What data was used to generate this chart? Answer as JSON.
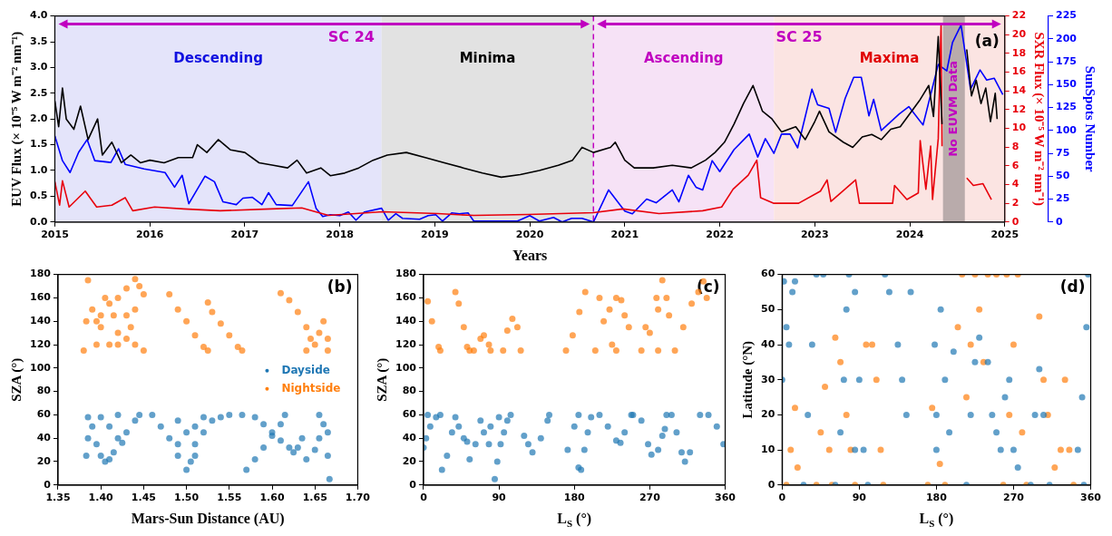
{
  "chart_data": [
    {
      "type": "line",
      "xlabel": "Years",
      "ylabel": "EUV Flux (× 10⁻⁵ W m⁻² nm⁻¹)",
      "y2label": "SXR Flux (× 10⁻⁵ W m⁻² nm⁻¹)",
      "y3label": "SunSpots Number",
      "xlim": [
        2015,
        2025
      ],
      "xticks": [
        2015,
        2016,
        2017,
        2018,
        2019,
        2020,
        2021,
        2022,
        2023,
        2024,
        2025
      ],
      "ylim": [
        0,
        4
      ],
      "yticks": [
        {
          "value": 0,
          "label": "0.0"
        },
        0.5,
        {
          "value": 1,
          "label": "1.0"
        },
        1.5,
        {
          "value": 2,
          "label": "2.0"
        },
        2.5,
        {
          "value": 3,
          "label": "3.0"
        },
        3.5,
        {
          "value": 4,
          "label": "4.0"
        }
      ],
      "y2lim": [
        0,
        22
      ],
      "y2ticks": [
        0,
        2,
        4,
        6,
        8,
        10,
        12,
        14,
        16,
        18,
        20,
        22
      ],
      "y3lim": [
        0,
        225
      ],
      "y3ticks": [
        0,
        25,
        50,
        75,
        100,
        125,
        150,
        175,
        200,
        225
      ],
      "marker": "none",
      "line_style": "solid",
      "series": [
        {
          "color": "#000000",
          "x": [
            2015.0,
            2015.04,
            2015.08,
            2015.12,
            2015.2,
            2015.27,
            2015.35,
            2015.45,
            2015.5,
            2015.6,
            2015.7,
            2015.8,
            2015.9,
            2016.0,
            2016.15,
            2016.3,
            2016.45,
            2016.5,
            2016.6,
            2016.72,
            2016.85,
            2017.0,
            2017.15,
            2017.3,
            2017.45,
            2017.55,
            2017.65,
            2017.8,
            2017.9,
            2018.05,
            2018.2,
            2018.35,
            2018.5,
            2018.7,
            2018.9,
            2019.1,
            2019.3,
            2019.5,
            2019.7,
            2019.9,
            2020.1,
            2020.3,
            2020.45,
            2020.55,
            2020.67,
            2020.85,
            2020.9,
            2021.0,
            2021.1,
            2021.3,
            2021.5,
            2021.7,
            2021.85,
            2021.95,
            2022.05,
            2022.15,
            2022.25,
            2022.35,
            2022.45,
            2022.55,
            2022.65,
            2022.8,
            2022.9,
            2023.0,
            2023.05,
            2023.15,
            2023.3,
            2023.4,
            2023.5,
            2023.6,
            2023.7,
            2023.8,
            2023.9,
            2024.0,
            2024.1,
            2024.2,
            2024.25,
            2024.3,
            2024.34,
            2024.36,
            2024.6,
            2024.65,
            2024.7,
            2024.75,
            2024.8,
            2024.85,
            2024.9,
            2024.92
          ],
          "values": [
            2.35,
            1.85,
            2.6,
            2.0,
            1.8,
            2.25,
            1.6,
            2.0,
            1.3,
            1.55,
            1.15,
            1.3,
            1.15,
            1.2,
            1.15,
            1.25,
            1.25,
            1.5,
            1.35,
            1.6,
            1.4,
            1.35,
            1.15,
            1.1,
            1.05,
            1.2,
            0.95,
            1.05,
            0.9,
            0.95,
            1.05,
            1.2,
            1.3,
            1.35,
            1.25,
            1.15,
            1.05,
            0.95,
            0.87,
            0.92,
            1.0,
            1.1,
            1.2,
            1.45,
            1.35,
            1.45,
            1.55,
            1.2,
            1.05,
            1.05,
            1.1,
            1.05,
            1.2,
            1.35,
            1.55,
            1.9,
            2.3,
            2.65,
            2.15,
            2.0,
            1.75,
            1.85,
            1.6,
            1.95,
            2.15,
            1.75,
            1.55,
            1.45,
            1.65,
            1.7,
            1.6,
            1.8,
            1.85,
            2.1,
            2.35,
            2.65,
            2.05,
            3.6,
            1.9,
            null,
            3.35,
            2.45,
            2.75,
            2.3,
            2.6,
            1.95,
            2.5,
            2.0
          ]
        },
        {
          "color": "#e8000b",
          "axis": "y2",
          "x": [
            2015.0,
            2015.05,
            2015.08,
            2015.15,
            2015.32,
            2015.44,
            2015.6,
            2015.74,
            2015.82,
            2016.05,
            2016.36,
            2016.74,
            2017.27,
            2017.6,
            2017.88,
            2018.45,
            2019.03,
            2019.41,
            2019.98,
            2020.67,
            2020.98,
            2021.36,
            2021.82,
            2022.02,
            2022.14,
            2022.3,
            2022.39,
            2022.43,
            2022.57,
            2022.83,
            2023.06,
            2023.13,
            2023.17,
            2023.43,
            2023.47,
            2023.82,
            2023.84,
            2023.97,
            2024.09,
            2024.11,
            2024.17,
            2024.22,
            2024.24,
            2024.3,
            2024.33,
            2024.34,
            2024.36,
            2024.6,
            2024.67,
            2024.77,
            2024.86
          ],
          "values": [
            4.3,
            1.8,
            4.4,
            1.6,
            3.3,
            1.6,
            1.8,
            2.6,
            1.2,
            1.6,
            1.4,
            1.2,
            1.4,
            1.5,
            0.7,
            1.1,
            0.9,
            0.7,
            0.8,
            1.0,
            1.4,
            0.9,
            1.2,
            1.6,
            3.5,
            5.0,
            6.6,
            2.6,
            2.0,
            2.0,
            3.3,
            4.5,
            2.2,
            4.5,
            2.0,
            2.0,
            3.9,
            2.4,
            3.1,
            8.7,
            3.5,
            8.1,
            2.4,
            8.9,
            21.1,
            8.1,
            null,
            4.7,
            3.9,
            4.1,
            2.4
          ]
        },
        {
          "color": "#0000ff",
          "axis": "y3",
          "x": [
            2015.0,
            2015.08,
            2015.16,
            2015.25,
            2015.34,
            2015.42,
            2015.59,
            2015.67,
            2015.74,
            2015.94,
            2016.16,
            2016.26,
            2016.34,
            2016.41,
            2016.58,
            2016.68,
            2016.77,
            2016.91,
            2016.98,
            2017.08,
            2017.18,
            2017.25,
            2017.33,
            2017.5,
            2017.67,
            2017.75,
            2017.82,
            2017.9,
            2018.0,
            2018.09,
            2018.17,
            2018.26,
            2018.44,
            2018.51,
            2018.59,
            2018.66,
            2018.84,
            2018.93,
            2019.01,
            2019.08,
            2019.18,
            2019.26,
            2019.35,
            2019.41,
            2019.87,
            2020.0,
            2020.1,
            2020.25,
            2020.34,
            2020.44,
            2020.55,
            2020.67,
            2020.83,
            2021.0,
            2021.08,
            2021.23,
            2021.33,
            2021.5,
            2021.57,
            2021.67,
            2021.75,
            2021.82,
            2021.92,
            2022.0,
            2022.15,
            2022.31,
            2022.4,
            2022.48,
            2022.57,
            2022.65,
            2022.74,
            2022.82,
            2022.97,
            2023.03,
            2023.15,
            2023.22,
            2023.32,
            2023.41,
            2023.49,
            2023.57,
            2023.62,
            2023.7,
            2023.89,
            2023.99,
            2024.14,
            2024.3,
            2024.39,
            2024.45,
            2024.54,
            2024.64,
            2024.74,
            2024.81,
            2024.89,
            2024.98
          ],
          "values": [
            94,
            67,
            54,
            76,
            90,
            67,
            65,
            80,
            63,
            58,
            54,
            38,
            51,
            20,
            50,
            44,
            22,
            19,
            26,
            27,
            19,
            32,
            19,
            18,
            44,
            15,
            6,
            8,
            7,
            11,
            2,
            11,
            15,
            2,
            9,
            4,
            3,
            7,
            8,
            1,
            10,
            9,
            10,
            1,
            1,
            7,
            1,
            5,
            0,
            4,
            4,
            0,
            35,
            12,
            9,
            25,
            21,
            35,
            22,
            51,
            38,
            35,
            67,
            55,
            79,
            96,
            71,
            91,
            75,
            96,
            96,
            81,
            145,
            128,
            124,
            98,
            135,
            158,
            158,
            116,
            134,
            100,
            118,
            126,
            106,
            172,
            165,
            196,
            215,
            145,
            166,
            155,
            157,
            139
          ]
        }
      ],
      "bands": [
        {
          "axis": "x",
          "from": 2015,
          "to": 2018.44,
          "label": "Descending",
          "color": "#e4e4fa"
        },
        {
          "axis": "x",
          "from": 2018.44,
          "to": 2020.67,
          "label": "Minima",
          "color": "#e2e2e2"
        },
        {
          "axis": "x",
          "from": 2020.67,
          "to": 2022.57,
          "label": "Ascending",
          "color": "#f6e2f6"
        },
        {
          "axis": "x",
          "from": 2022.57,
          "to": 2025,
          "label": "Maxima",
          "color": "#fbe4e2"
        },
        {
          "axis": "x",
          "from": 2024.35,
          "to": 2024.58,
          "label": "No EUVM Data",
          "color": "#b9abab"
        }
      ],
      "ref_lines": [
        {
          "axis": "x",
          "value": 2020.67,
          "color": "#c000c0",
          "line_style": "dashed"
        }
      ],
      "annotations": [
        "SC 24",
        "SC 25",
        "(a)"
      ]
    },
    {
      "type": "scatter",
      "xlabel": "Mars-Sun Distance (AU)",
      "ylabel": "SZA (°)",
      "xlim": [
        1.35,
        1.7
      ],
      "xticks": [
        1.35,
        {
          "value": 1.4,
          "label": "1.40"
        },
        1.45,
        {
          "value": 1.5,
          "label": "1.50"
        },
        1.55,
        {
          "value": 1.6,
          "label": "1.60"
        },
        1.65,
        {
          "value": 1.7,
          "label": "1.70"
        }
      ],
      "ylim": [
        0,
        180
      ],
      "yticks": [
        0,
        20,
        40,
        60,
        80,
        100,
        120,
        140,
        160,
        180
      ],
      "marker": "circle",
      "legend": "right",
      "series": [
        {
          "name": "Dayside",
          "color": "#1f77b4",
          "x": [
            1.383,
            1.385,
            1.385,
            1.39,
            1.395,
            1.4,
            1.405,
            1.41,
            1.415,
            1.4,
            1.41,
            1.42,
            1.425,
            1.43,
            1.44,
            1.445,
            1.42,
            1.46,
            1.47,
            1.48,
            1.49,
            1.5,
            1.505,
            1.51,
            1.52,
            1.53,
            1.54,
            1.55,
            1.565,
            1.49,
            1.5,
            1.51,
            1.52,
            1.49,
            1.51,
            1.57,
            1.58,
            1.59,
            1.6,
            1.61,
            1.615,
            1.58,
            1.59,
            1.6,
            1.61,
            1.62,
            1.625,
            1.63,
            1.635,
            1.64,
            1.65,
            1.655,
            1.66,
            1.655,
            1.665,
            1.665,
            1.667
          ],
          "values": [
            25,
            40,
            58,
            50,
            35,
            25,
            20,
            22,
            28,
            58,
            50,
            40,
            36,
            45,
            55,
            60,
            60,
            60,
            50,
            40,
            25,
            13,
            20,
            35,
            45,
            55,
            58,
            60,
            60,
            55,
            45,
            50,
            58,
            35,
            25,
            13,
            22,
            32,
            42,
            52,
            60,
            58,
            52,
            45,
            38,
            32,
            28,
            32,
            40,
            22,
            30,
            40,
            52,
            60,
            45,
            25,
            5
          ]
        },
        {
          "name": "Nightside",
          "color": "#ff7f0e",
          "x": [
            1.38,
            1.383,
            1.385,
            1.39,
            1.395,
            1.4,
            1.405,
            1.41,
            1.415,
            1.42,
            1.4,
            1.395,
            1.42,
            1.43,
            1.44,
            1.445,
            1.45,
            1.44,
            1.44,
            1.45,
            1.43,
            1.41,
            1.42,
            1.435,
            1.43,
            1.48,
            1.49,
            1.5,
            1.51,
            1.52,
            1.525,
            1.525,
            1.53,
            1.54,
            1.55,
            1.56,
            1.565,
            1.61,
            1.62,
            1.63,
            1.64,
            1.645,
            1.65,
            1.655,
            1.66,
            1.665,
            1.665,
            1.64
          ],
          "values": [
            115,
            140,
            175,
            150,
            120,
            145,
            160,
            155,
            145,
            130,
            135,
            140,
            160,
            168,
            176,
            170,
            163,
            150,
            120,
            115,
            125,
            120,
            120,
            135,
            145,
            163,
            150,
            140,
            128,
            118,
            115,
            156,
            148,
            138,
            128,
            118,
            115,
            164,
            158,
            148,
            135,
            125,
            120,
            130,
            140,
            125,
            115,
            115
          ]
        }
      ],
      "annotations": [
        "(b)"
      ]
    },
    {
      "type": "scatter",
      "xlabel": "L$_{S}$ (°)",
      "ylabel": "SZA (°)",
      "xlim": [
        0,
        360
      ],
      "xticks": [
        0,
        90,
        180,
        270,
        360
      ],
      "ylim": [
        0,
        180
      ],
      "yticks": [
        0,
        20,
        40,
        60,
        80,
        100,
        120,
        140,
        160,
        180
      ],
      "marker": "circle",
      "series": [
        {
          "color": "#1f77b4",
          "x": [
            0,
            3,
            8,
            15,
            20,
            5,
            22,
            28,
            34,
            38,
            42,
            48,
            52,
            55,
            62,
            68,
            72,
            78,
            85,
            88,
            92,
            96,
            100,
            104,
            90,
            80,
            120,
            125,
            130,
            140,
            148,
            150,
            172,
            180,
            185,
            188,
            192,
            196,
            200,
            185,
            210,
            220,
            230,
            235,
            240,
            248,
            250,
            260,
            268,
            272,
            280,
            285,
            288,
            290,
            296,
            302,
            308,
            312,
            318,
            330,
            340,
            350,
            358
          ],
          "values": [
            32,
            40,
            50,
            58,
            60,
            60,
            13,
            25,
            45,
            58,
            50,
            40,
            37,
            22,
            35,
            55,
            45,
            35,
            5,
            20,
            35,
            45,
            55,
            60,
            58,
            50,
            42,
            35,
            28,
            40,
            55,
            60,
            30,
            50,
            15,
            13,
            30,
            45,
            58,
            60,
            60,
            50,
            38,
            36,
            45,
            60,
            60,
            55,
            35,
            26,
            30,
            42,
            48,
            60,
            60,
            45,
            28,
            20,
            28,
            60,
            60,
            50,
            35
          ]
        },
        {
          "color": "#ff7f0e",
          "x": [
            5,
            10,
            18,
            20,
            38,
            42,
            48,
            52,
            55,
            60,
            68,
            72,
            78,
            80,
            95,
            100,
            106,
            112,
            116,
            170,
            178,
            186,
            193,
            205,
            210,
            215,
            222,
            230,
            236,
            240,
            245,
            225,
            230,
            260,
            265,
            270,
            278,
            285,
            290,
            293,
            280,
            280,
            300,
            310,
            320,
            328,
            334,
            338
          ],
          "values": [
            157,
            140,
            118,
            115,
            165,
            155,
            135,
            118,
            115,
            115,
            125,
            128,
            120,
            115,
            115,
            132,
            142,
            135,
            115,
            115,
            128,
            148,
            165,
            115,
            160,
            140,
            150,
            160,
            158,
            145,
            135,
            120,
            115,
            115,
            135,
            130,
            160,
            175,
            160,
            145,
            115,
            150,
            115,
            135,
            155,
            165,
            174,
            160
          ]
        }
      ],
      "annotations": [
        "(c)"
      ]
    },
    {
      "type": "scatter",
      "xlabel": "L$_{S}$ (°)",
      "ylabel": "Latitude (°N)",
      "xlim": [
        0,
        360
      ],
      "xticks": [
        0,
        90,
        180,
        270,
        360
      ],
      "ylim": [
        0,
        60
      ],
      "yticks": [
        0,
        10,
        20,
        30,
        40,
        50,
        60
      ],
      "marker": "circle",
      "series": [
        {
          "color": "#1f77b4",
          "x": [
            2,
            5,
            8,
            12,
            15,
            0,
            25,
            30,
            35,
            40,
            48,
            62,
            68,
            72,
            75,
            78,
            85,
            90,
            95,
            100,
            85,
            120,
            125,
            135,
            140,
            145,
            150,
            178,
            185,
            190,
            195,
            200,
            180,
            180,
            215,
            220,
            225,
            230,
            240,
            245,
            250,
            255,
            260,
            265,
            270,
            275,
            290,
            295,
            300,
            305,
            312,
            345,
            350,
            355,
            357,
            352
          ],
          "values": [
            58,
            45,
            40,
            55,
            58,
            30,
            0,
            20,
            40,
            60,
            60,
            0,
            15,
            30,
            50,
            60,
            55,
            30,
            10,
            0,
            10,
            60,
            55,
            40,
            30,
            20,
            55,
            40,
            50,
            30,
            15,
            38,
            10,
            20,
            0,
            20,
            35,
            42,
            35,
            20,
            15,
            10,
            25,
            30,
            10,
            5,
            0,
            20,
            33,
            20,
            0,
            10,
            25,
            45,
            60,
            0
          ]
        },
        {
          "color": "#ff7f0e",
          "x": [
            5,
            10,
            15,
            18,
            40,
            45,
            50,
            55,
            58,
            62,
            68,
            75,
            80,
            85,
            98,
            105,
            110,
            115,
            118,
            170,
            175,
            184,
            190,
            205,
            210,
            215,
            220,
            225,
            230,
            235,
            240,
            250,
            258,
            262,
            270,
            275,
            265,
            280,
            285,
            300,
            305,
            310,
            318,
            325,
            330,
            335,
            340
          ],
          "values": [
            0,
            10,
            22,
            5,
            0,
            15,
            28,
            10,
            0,
            42,
            35,
            20,
            10,
            0,
            40,
            40,
            30,
            10,
            0,
            0,
            22,
            6,
            0,
            45,
            60,
            25,
            40,
            60,
            50,
            35,
            60,
            60,
            0,
            60,
            40,
            60,
            20,
            15,
            0,
            48,
            30,
            20,
            5,
            10,
            30,
            10,
            0
          ]
        }
      ],
      "annotations": [
        "(d)"
      ]
    }
  ]
}
